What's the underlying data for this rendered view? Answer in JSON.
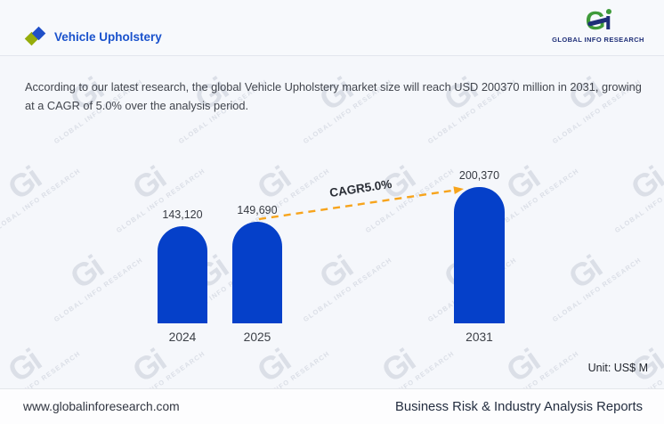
{
  "header": {
    "title": "Vehicle Upholstery",
    "logo": {
      "mark_g": "G",
      "mark_i": "i",
      "name": "GLOBAL INFO RESEARCH"
    }
  },
  "description": {
    "lines": [
      "According to our latest research, the global Vehicle Upholstery market size will reach USD 200370 million in 2031, growing",
      "at a CAGR of 5.0% over the analysis period."
    ]
  },
  "chart_data": {
    "type": "bar",
    "categories": [
      "2024",
      "2025",
      "2031"
    ],
    "values": [
      143120,
      149690,
      200370
    ],
    "value_labels": [
      "143,120",
      "149,690",
      "200,370"
    ],
    "annotation": "CAGR5.0%",
    "unit_label": "Unit: US$ M",
    "ylim": [
      0,
      200370
    ],
    "grid": false,
    "legend": "none",
    "bar_color": "#0540c9",
    "arrow_color": "#f7a41c"
  },
  "watermark": {
    "mark": "Gi",
    "text": "GLOBAL INFO RESEARCH"
  },
  "footer": {
    "website": "www.globalinforesearch.com",
    "tagline": "Business Risk & Industry Analysis Reports"
  },
  "colors": {
    "background": "#f5f7fb",
    "accent_blue": "#1a52cc",
    "bar_blue": "#0540c9",
    "arrow_orange": "#f7a41c",
    "diamond_green": "#96ad0c",
    "diamond_blue": "#2050c8",
    "logo_green": "#3f9b3a",
    "logo_navy": "#1f2f78"
  }
}
